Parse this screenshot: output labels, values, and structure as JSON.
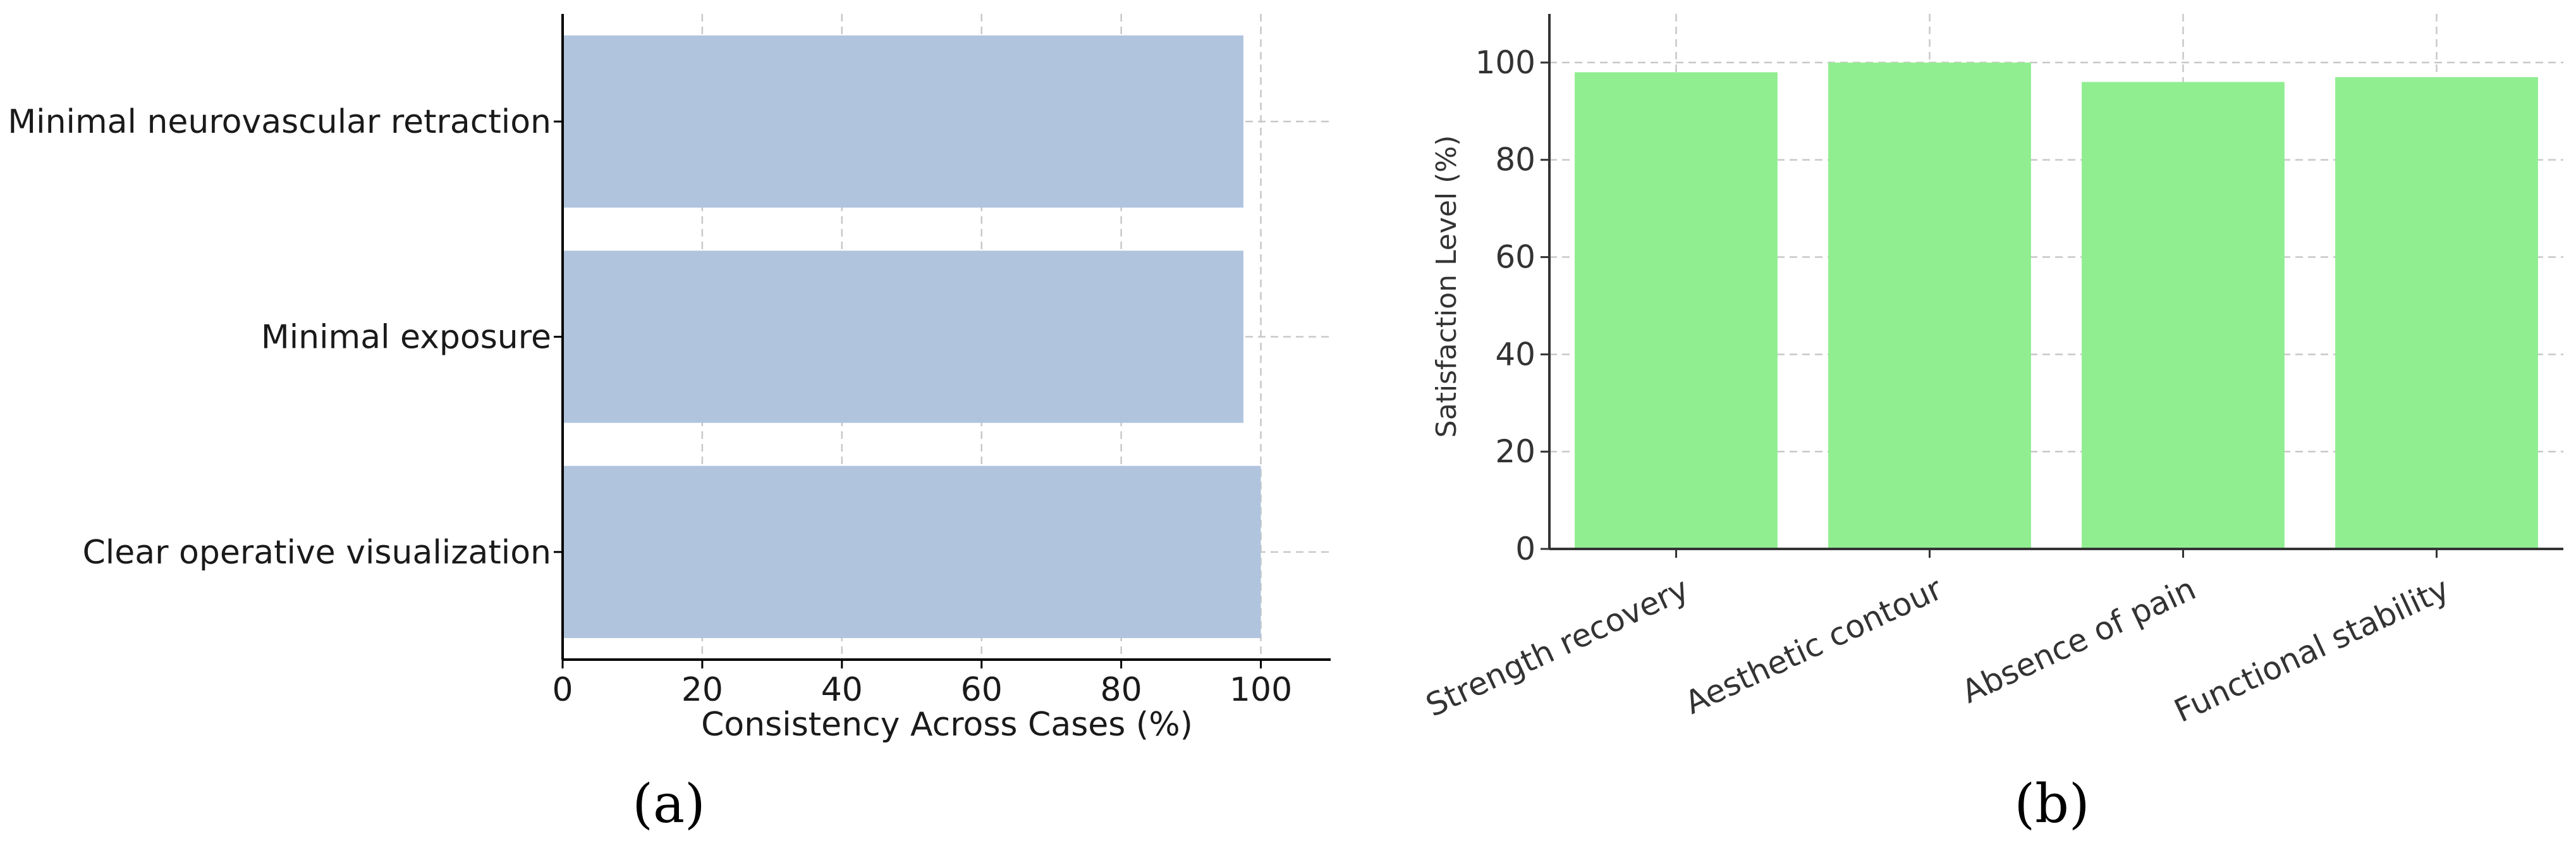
{
  "panels": {
    "a": {
      "label": "(a)"
    },
    "b": {
      "label": "(b)"
    }
  },
  "colors": {
    "bar_a": "#b0c4de",
    "bar_b": "#90ee90",
    "grid": "#c8c8c8",
    "axis": "#000000"
  },
  "chart_data": [
    {
      "type": "bar",
      "orientation": "horizontal",
      "categories": [
        "Minimal neurovascular retraction",
        "Minimal exposure",
        "Clear operative visualization"
      ],
      "values": [
        97.5,
        97.5,
        100
      ],
      "xlabel": "Consistency Across Cases (%)",
      "ylabel": "",
      "xlim": [
        0,
        110
      ],
      "xticks": [
        "0",
        "20",
        "40",
        "60",
        "80",
        "100"
      ],
      "grid": true
    },
    {
      "type": "bar",
      "orientation": "vertical",
      "categories": [
        "Strength recovery",
        "Aesthetic contour",
        "Absence of pain",
        "Functional stability"
      ],
      "values": [
        98,
        100,
        96,
        97
      ],
      "xlabel": "",
      "ylabel": "Satisfaction Level (%)",
      "ylim": [
        0,
        110
      ],
      "yticks": [
        "0",
        "20",
        "40",
        "60",
        "80",
        "100"
      ],
      "grid": true
    }
  ]
}
